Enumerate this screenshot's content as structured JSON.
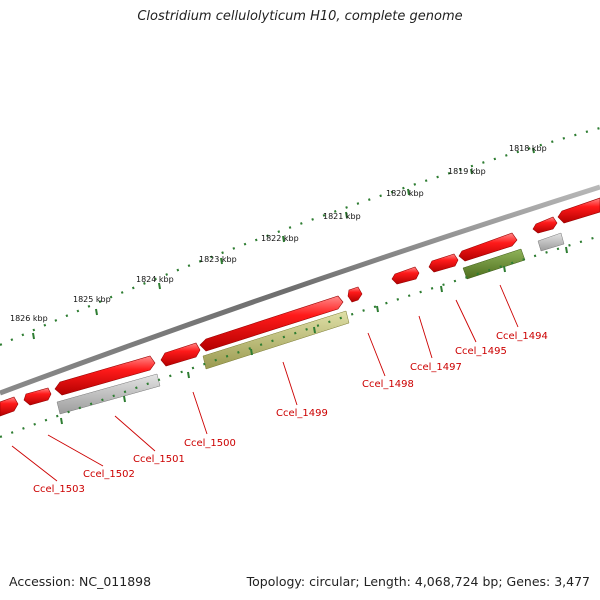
{
  "title": "Clostridium cellulolyticum H10, complete genome",
  "footer": {
    "accession": "Accession: NC_011898",
    "stats": "Topology: circular; Length: 4,068,724 bp; Genes: 3,477"
  },
  "kbp_ticks": [
    "1818 kbp",
    "1819 kbp",
    "1820 kbp",
    "1821 kbp",
    "1822 kbp",
    "1823 kbp",
    "1824 kbp",
    "1825 kbp",
    "1826 kbp"
  ],
  "genes": [
    {
      "name": "Ccel_1494",
      "strand": "forward"
    },
    {
      "name": "Ccel_1495",
      "strand": "forward"
    },
    {
      "name": "Ccel_1497",
      "strand": "forward"
    },
    {
      "name": "Ccel_1498",
      "strand": "forward"
    },
    {
      "name": "Ccel_1499",
      "strand": "reverse",
      "color": "#b5b56a"
    },
    {
      "name": "Ccel_1500",
      "strand": "forward"
    },
    {
      "name": "Ccel_1501",
      "strand": "reverse",
      "color": "#b8b8b8"
    },
    {
      "name": "Ccel_1502",
      "strand": "forward"
    },
    {
      "name": "Ccel_1503",
      "strand": "forward"
    }
  ],
  "colors": {
    "forward_gene": "#ee0000",
    "backbone": "#7a7a7a",
    "scale_dots": "#2e7d32",
    "gene_label": "#cc0000",
    "reverse_gene_green": "#6b8e23",
    "reverse_gene_gray": "#b8b8b8"
  }
}
